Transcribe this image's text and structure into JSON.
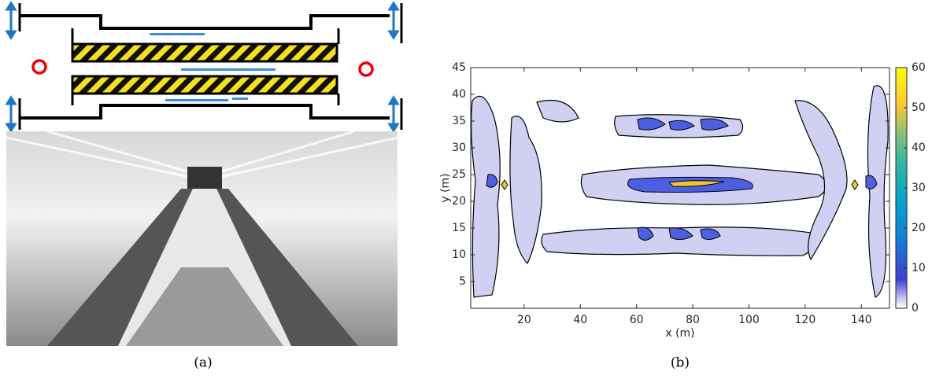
{
  "panel_a": {
    "caption": "(a)"
  },
  "chart_data": {
    "type": "contour",
    "caption": "(b)",
    "xlabel": "x (m)",
    "ylabel": "y (m)",
    "xlim": [
      1,
      150
    ],
    "ylim": [
      0,
      45
    ],
    "xticks": [
      20,
      40,
      60,
      80,
      100,
      120,
      140
    ],
    "yticks": [
      5,
      10,
      15,
      20,
      25,
      30,
      35,
      40,
      45
    ],
    "clim": [
      0,
      60
    ],
    "cticks": [
      0,
      10,
      20,
      30,
      40,
      50,
      60
    ]
  }
}
